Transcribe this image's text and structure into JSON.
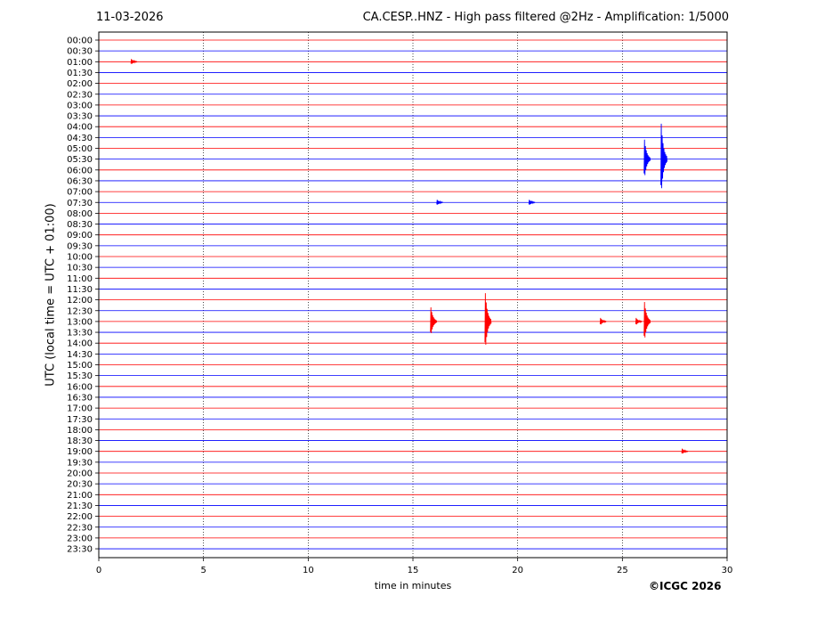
{
  "header": {
    "date": "11-03-2026",
    "title": "CA.CESP..HNZ - High pass filtered @2Hz - Amplification: 1/5000"
  },
  "footer": {
    "copyright": "©ICGC 2026"
  },
  "chart_data": {
    "type": "line",
    "title": "CA.CESP..HNZ - High pass filtered @2Hz - Amplification: 1/5000",
    "xlabel": "time in minutes",
    "ylabel": "UTC (local time = UTC + 01:00)",
    "xlim": [
      0,
      30
    ],
    "xticks": [
      0,
      5,
      10,
      15,
      20,
      25,
      30
    ],
    "rows": [
      "00:00",
      "00:30",
      "01:00",
      "01:30",
      "02:00",
      "02:30",
      "03:00",
      "03:30",
      "04:00",
      "04:30",
      "05:00",
      "05:30",
      "06:00",
      "06:30",
      "07:00",
      "07:30",
      "08:00",
      "08:30",
      "09:00",
      "09:30",
      "10:00",
      "10:30",
      "11:00",
      "11:30",
      "12:00",
      "12:30",
      "13:00",
      "13:30",
      "14:00",
      "14:30",
      "15:00",
      "15:30",
      "16:00",
      "16:30",
      "17:00",
      "17:30",
      "18:00",
      "18:30",
      "19:00",
      "19:30",
      "20:00",
      "20:30",
      "21:00",
      "21:30",
      "22:00",
      "22:30",
      "23:00",
      "23:30"
    ],
    "trace_colors": [
      "#ff0000",
      "#0000ff"
    ],
    "grid": "vertical dotted at each x tick",
    "events": [
      {
        "row": "01:00",
        "minute": 1.6,
        "amplitude": 0.3
      },
      {
        "row": "05:30",
        "minute": 26.1,
        "amplitude": 2.2
      },
      {
        "row": "05:30",
        "minute": 26.9,
        "amplitude": 4.0
      },
      {
        "row": "07:30",
        "minute": 16.2,
        "amplitude": 0.3
      },
      {
        "row": "07:30",
        "minute": 20.6,
        "amplitude": 0.3
      },
      {
        "row": "13:00",
        "minute": 15.9,
        "amplitude": 1.6
      },
      {
        "row": "13:00",
        "minute": 18.5,
        "amplitude": 3.2
      },
      {
        "row": "13:00",
        "minute": 24.0,
        "amplitude": 0.4
      },
      {
        "row": "13:00",
        "minute": 25.7,
        "amplitude": 0.4
      },
      {
        "row": "13:00",
        "minute": 26.1,
        "amplitude": 2.2
      },
      {
        "row": "19:00",
        "minute": 27.9,
        "amplitude": 0.3
      }
    ]
  }
}
